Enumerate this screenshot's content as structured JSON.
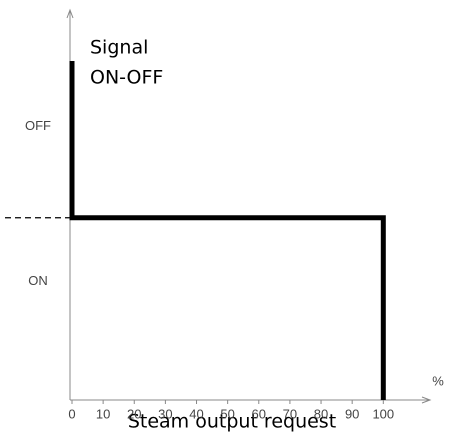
{
  "chart_data": {
    "type": "step",
    "annotation": [
      "Signal",
      "ON-OFF"
    ],
    "xlabel": "Steam output request",
    "x_unit": "%",
    "x": [
      0,
      0,
      100,
      100
    ],
    "values": [
      1.86,
      1,
      1,
      0
    ],
    "color": "#000000",
    "xlim": [
      0,
      115
    ],
    "xticks": [
      0,
      10,
      20,
      30,
      40,
      50,
      60,
      70,
      80,
      90,
      100
    ],
    "ylim": [
      0,
      2.14
    ],
    "yticks": [
      {
        "value": 1.5,
        "label": "OFF"
      },
      {
        "value": 0.65,
        "label": "ON"
      }
    ],
    "dashed_level": 1
  }
}
